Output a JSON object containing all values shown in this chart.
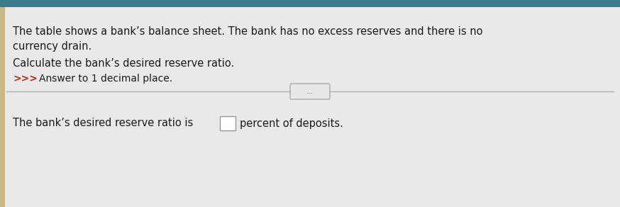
{
  "bg_color": "#e9e9e9",
  "content_bg": "#efefef",
  "line1": "The table shows a bank’s balance sheet. The bank has no excess reserves and there is no",
  "line2": "currency drain.",
  "line3": "Calculate the bank’s desired reserve ratio.",
  "arrow_prefix": ">>>",
  "line4": "Answer to 1 decimal place.",
  "bottom_line": "The bank’s desired reserve ratio is",
  "bottom_suffix": "percent of deposits.",
  "divider_color": "#b0b0b0",
  "text_color": "#1a1a1a",
  "arrow_color": "#cc2200",
  "box_color": "#ffffff",
  "box_border": "#999999",
  "left_bar_color": "#c8b888",
  "font_size_main": 10.5,
  "font_size_small": 10.0,
  "dots_color": "#666666",
  "btn_bg": "#e8e8e8",
  "btn_border": "#aaaaaa"
}
